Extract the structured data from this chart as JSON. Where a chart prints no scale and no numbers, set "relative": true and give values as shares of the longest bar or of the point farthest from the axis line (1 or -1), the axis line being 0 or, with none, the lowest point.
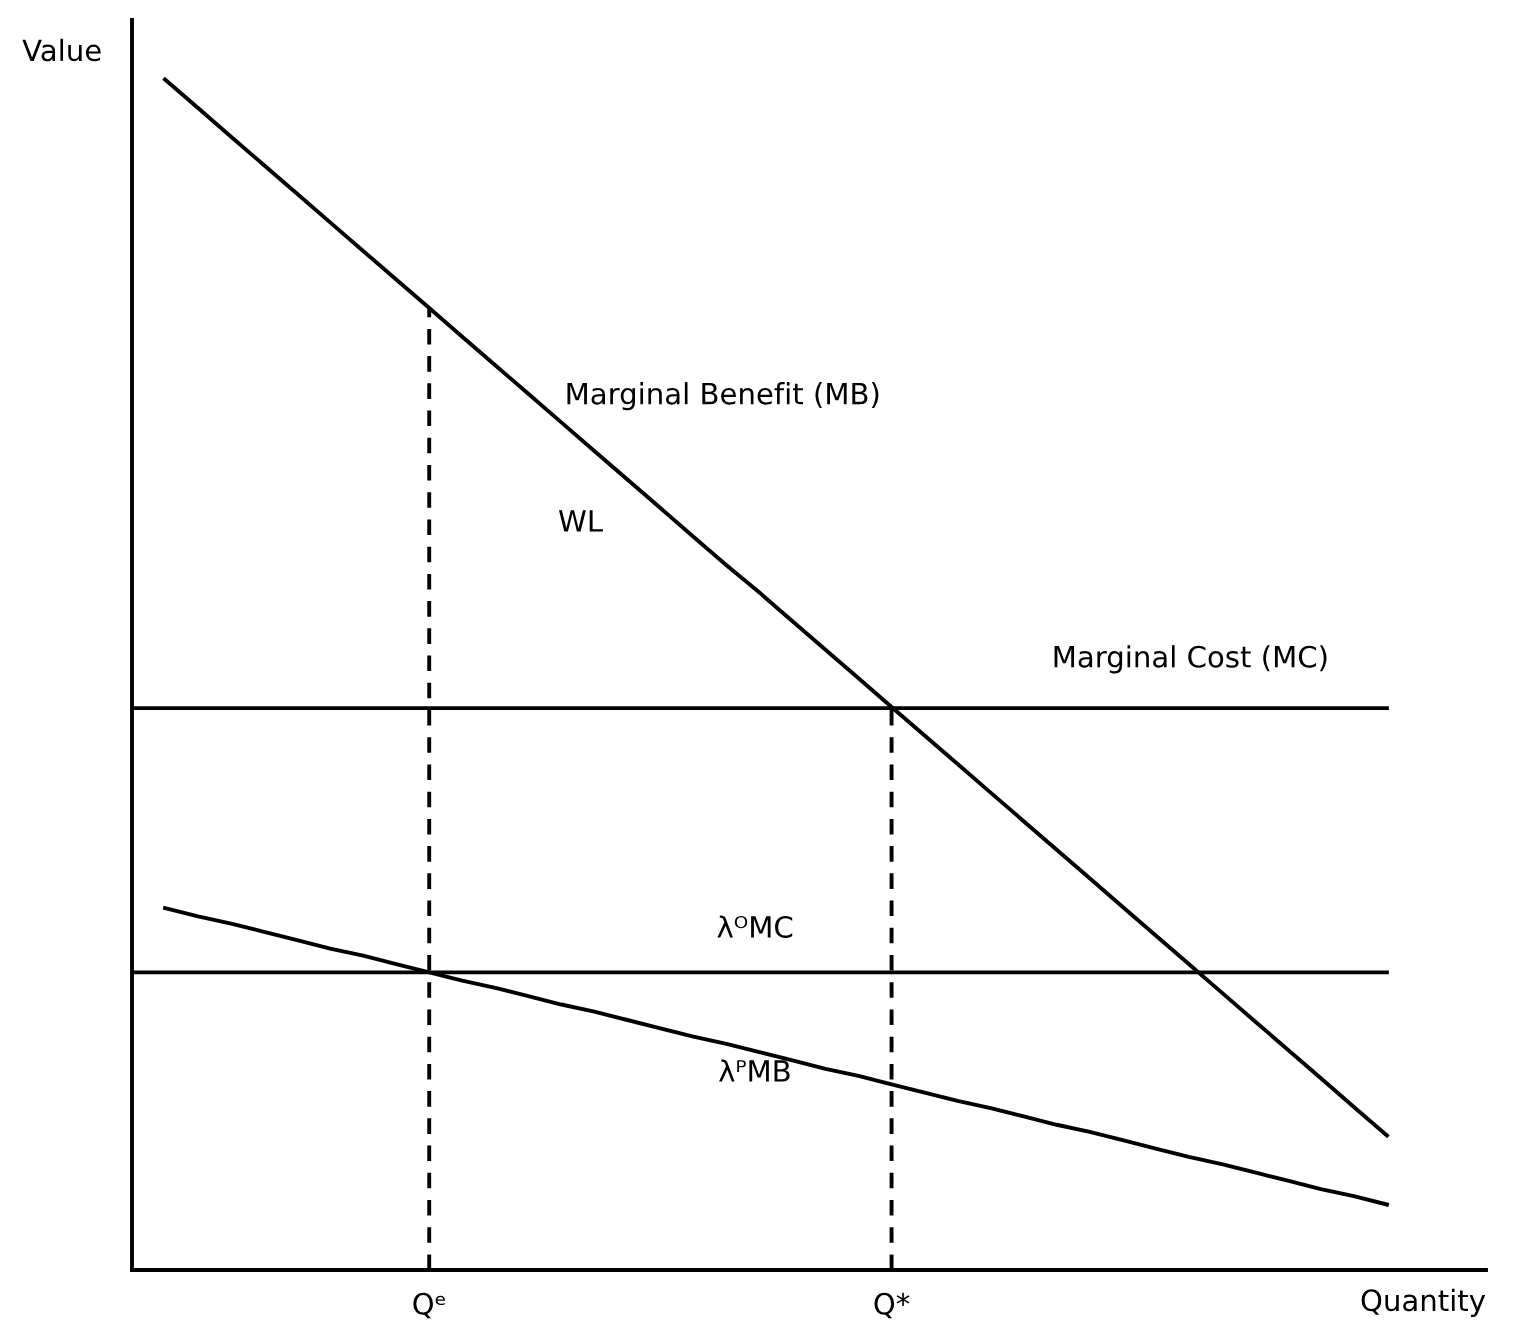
{
  "chart_data": {
    "type": "line",
    "relative": true,
    "xlabel": "Quantity",
    "ylabel": "Value",
    "grid": false,
    "legend": false,
    "marker": "none",
    "annotations": [
      "WL"
    ],
    "categories": [
      null,
      null,
      null,
      null,
      null,
      null,
      null,
      null,
      null,
      "Qᵉ",
      null,
      null,
      null,
      null,
      null,
      null,
      null,
      null,
      null,
      null,
      null,
      null,
      null,
      "Q*",
      null,
      null,
      null,
      null,
      null,
      null,
      null,
      null,
      null,
      null,
      null,
      null,
      null,
      null,
      null,
      null,
      null,
      null
    ],
    "series": [
      {
        "name": "Marginal Benefit (MB)",
        "color": "#000000",
        "values": [
          null,
          1.0,
          0.976,
          0.952,
          0.928,
          0.904,
          0.88,
          0.856,
          0.832,
          0.808,
          0.784,
          0.76,
          0.736,
          0.712,
          0.688,
          0.664,
          0.64,
          0.616,
          0.592,
          0.569,
          0.545,
          0.521,
          0.497,
          0.473,
          0.449,
          0.425,
          0.401,
          0.377,
          0.353,
          0.329,
          0.305,
          0.281,
          0.257,
          0.233,
          0.209,
          0.185,
          0.161,
          0.137,
          0.113,
          null,
          null,
          null
        ]
      },
      {
        "name": "Marginal Cost (MC)",
        "color": "#000000",
        "values": [
          0.472,
          0.472,
          0.472,
          0.472,
          0.472,
          0.472,
          0.472,
          0.472,
          0.472,
          0.472,
          0.472,
          0.472,
          0.472,
          0.472,
          0.472,
          0.472,
          0.472,
          0.472,
          0.472,
          0.472,
          0.472,
          0.472,
          0.472,
          0.472,
          0.472,
          0.472,
          0.472,
          0.472,
          0.472,
          0.472,
          0.472,
          0.472,
          0.472,
          0.472,
          0.472,
          0.472,
          0.472,
          0.472,
          0.472,
          null,
          null,
          null
        ]
      },
      {
        "name": "λᴼMC",
        "color": "#000000",
        "values": [
          0.25,
          0.25,
          0.25,
          0.25,
          0.25,
          0.25,
          0.25,
          0.25,
          0.25,
          0.25,
          0.25,
          0.25,
          0.25,
          0.25,
          0.25,
          0.25,
          0.25,
          0.25,
          0.25,
          0.25,
          0.25,
          0.25,
          0.25,
          0.25,
          0.25,
          0.25,
          0.25,
          0.25,
          0.25,
          0.25,
          0.25,
          0.25,
          0.25,
          0.25,
          0.25,
          0.25,
          0.25,
          0.25,
          0.25,
          null,
          null,
          null
        ]
      },
      {
        "name": "λᴾMB",
        "color": "#000000",
        "values": [
          null,
          0.304,
          0.297,
          0.291,
          0.284,
          0.277,
          0.27,
          0.264,
          0.257,
          0.25,
          0.243,
          0.237,
          0.23,
          0.223,
          0.217,
          0.21,
          0.203,
          0.196,
          0.19,
          0.183,
          0.176,
          0.169,
          0.163,
          0.156,
          0.149,
          0.142,
          0.136,
          0.129,
          0.122,
          0.116,
          0.109,
          0.102,
          0.095,
          0.089,
          0.082,
          0.075,
          0.068,
          0.062,
          0.055,
          null,
          null,
          null
        ]
      },
      {
        "color": "#000000",
        "x": [
          "Qᵉ",
          "Qᵉ"
        ],
        "values": [
          0,
          0.808
        ],
        "line_style": "dashed"
      },
      {
        "color": "#000000",
        "x": [
          "Q*",
          "Q*"
        ],
        "values": [
          0,
          0.472
        ],
        "line_style": "dashed"
      }
    ]
  }
}
